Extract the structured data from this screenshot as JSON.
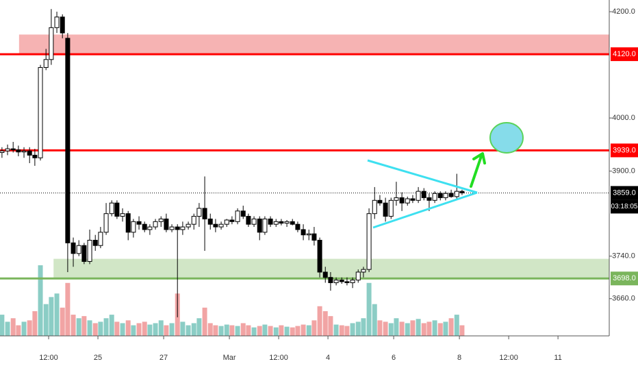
{
  "chart_data": {
    "type": "candlestick",
    "x": [
      22.08,
      22.25,
      22.42,
      22.58,
      22.75,
      22.92,
      23.08,
      23.25,
      23.42,
      23.58,
      23.75,
      23.92,
      24.08,
      24.25,
      24.42,
      24.58,
      24.75,
      24.92,
      25.08,
      25.25,
      25.42,
      25.58,
      25.75,
      25.92,
      26.08,
      26.25,
      26.42,
      26.58,
      26.75,
      26.92,
      27.08,
      27.25,
      27.42,
      27.58,
      27.75,
      27.92,
      28.08,
      28.25,
      28.42,
      28.58,
      28.75,
      28.92,
      29.08,
      29.25,
      29.42,
      29.58,
      29.75,
      29.92,
      30.08,
      30.25,
      30.42,
      30.58,
      30.75,
      30.92,
      31.08,
      31.25,
      31.42,
      31.58,
      31.75,
      31.92,
      32.08,
      32.25,
      32.42,
      32.58,
      32.75,
      32.92,
      33.08,
      33.25,
      33.42,
      33.58,
      33.75,
      33.92,
      34.08,
      34.25,
      34.42,
      34.58,
      34.75,
      34.92,
      35.08,
      35.25,
      35.42,
      35.58,
      35.75,
      35.92,
      36.08
    ],
    "open": [
      3935,
      3938,
      3942,
      3940,
      3936,
      3938,
      3930,
      3925,
      4095,
      4110,
      4170,
      4190,
      4150,
      3765,
      3745,
      3760,
      3730,
      3770,
      3760,
      3785,
      3820,
      3840,
      3815,
      3820,
      3785,
      3805,
      3800,
      3790,
      3795,
      3805,
      3810,
      3790,
      3795,
      3790,
      3795,
      3800,
      3815,
      3830,
      3810,
      3800,
      3795,
      3800,
      3808,
      3805,
      3825,
      3815,
      3800,
      3810,
      3785,
      3810,
      3800,
      3805,
      3802,
      3805,
      3800,
      3790,
      3780,
      3782,
      3770,
      3710,
      3700,
      3690,
      3695,
      3692,
      3690,
      3695,
      3710,
      3715,
      3820,
      3845,
      3840,
      3815,
      3845,
      3850,
      3840,
      3848,
      3845,
      3862,
      3850,
      3845,
      3858,
      3850,
      3858,
      3852,
      3862
    ],
    "high": [
      3945,
      3950,
      3955,
      3948,
      3945,
      3945,
      3942,
      4100,
      4130,
      4205,
      4200,
      4195,
      4160,
      3775,
      3770,
      3765,
      3790,
      3780,
      3795,
      3840,
      3845,
      3845,
      3830,
      3825,
      3810,
      3815,
      3805,
      3800,
      3810,
      3815,
      3820,
      3800,
      3800,
      3805,
      3805,
      3820,
      3840,
      3890,
      3820,
      3810,
      3805,
      3810,
      3815,
      3830,
      3835,
      3820,
      3815,
      3815,
      3815,
      3815,
      3810,
      3810,
      3808,
      3810,
      3805,
      3800,
      3790,
      3795,
      3775,
      3720,
      3710,
      3700,
      3700,
      3700,
      3700,
      3715,
      3720,
      3830,
      3870,
      3855,
      3850,
      3850,
      3880,
      3860,
      3852,
      3855,
      3870,
      3868,
      3858,
      3862,
      3862,
      3862,
      3865,
      3895,
      3865
    ],
    "low": [
      3925,
      3930,
      3935,
      3928,
      3925,
      3915,
      3910,
      3920,
      4090,
      4100,
      4160,
      4150,
      3710,
      3720,
      3740,
      3725,
      3725,
      3750,
      3755,
      3780,
      3815,
      3810,
      3805,
      3770,
      3775,
      3790,
      3785,
      3780,
      3790,
      3795,
      3785,
      3785,
      3625,
      3780,
      3790,
      3790,
      3795,
      3750,
      3790,
      3785,
      3790,
      3795,
      3800,
      3800,
      3810,
      3795,
      3795,
      3770,
      3780,
      3795,
      3795,
      3798,
      3795,
      3798,
      3785,
      3770,
      3770,
      3760,
      3700,
      3690,
      3675,
      3685,
      3688,
      3685,
      3680,
      3690,
      3700,
      3710,
      3810,
      3835,
      3805,
      3810,
      3835,
      3825,
      3835,
      3840,
      3840,
      3845,
      3825,
      3840,
      3845,
      3845,
      3850,
      3848,
      3855
    ],
    "close": [
      3938,
      3942,
      3940,
      3936,
      3938,
      3930,
      3925,
      4095,
      4110,
      4170,
      4190,
      4160,
      3765,
      3745,
      3760,
      3730,
      3770,
      3760,
      3785,
      3820,
      3840,
      3815,
      3820,
      3785,
      3805,
      3800,
      3790,
      3795,
      3805,
      3810,
      3790,
      3795,
      3790,
      3795,
      3800,
      3815,
      3830,
      3810,
      3800,
      3795,
      3800,
      3808,
      3805,
      3825,
      3815,
      3800,
      3810,
      3785,
      3810,
      3800,
      3805,
      3802,
      3805,
      3800,
      3790,
      3780,
      3782,
      3770,
      3710,
      3700,
      3690,
      3695,
      3692,
      3690,
      3695,
      3710,
      3715,
      3820,
      3845,
      3840,
      3815,
      3845,
      3850,
      3840,
      3848,
      3845,
      3862,
      3850,
      3845,
      3858,
      3850,
      3858,
      3852,
      3862,
      3859
    ],
    "volume": [
      30,
      20,
      25,
      15,
      20,
      22,
      35,
      100,
      45,
      55,
      60,
      40,
      75,
      30,
      25,
      28,
      22,
      18,
      20,
      25,
      30,
      20,
      18,
      22,
      15,
      18,
      20,
      16,
      18,
      22,
      15,
      18,
      60,
      20,
      15,
      18,
      25,
      40,
      18,
      15,
      14,
      16,
      15,
      14,
      18,
      15,
      12,
      14,
      16,
      14,
      12,
      15,
      13,
      12,
      14,
      16,
      15,
      22,
      42,
      35,
      28,
      16,
      15,
      14,
      18,
      20,
      25,
      75,
      45,
      22,
      20,
      18,
      25,
      20,
      18,
      22,
      24,
      18,
      20,
      22,
      18,
      20,
      25,
      30,
      15
    ],
    "up_color": "#ffffff",
    "down_color": "#000000",
    "outline_color": "#000000",
    "volume_up_color": "#7ec8bf",
    "volume_down_color": "#ef9a9a",
    "xlim": [
      22.02,
      40.56
    ],
    "ylim": [
      3590,
      4222
    ],
    "xticks": [
      {
        "value": 23.5,
        "label": "12:00"
      },
      25,
      27,
      {
        "value": 29,
        "label": "Mar"
      },
      {
        "value": 30.5,
        "label": "12:00"
      },
      {
        "value": 32,
        "label": "4"
      },
      {
        "value": 34,
        "label": "6"
      },
      {
        "value": 36,
        "label": "8"
      },
      {
        "value": 37.5,
        "label": "12:00"
      },
      {
        "value": 39,
        "label": "11"
      }
    ],
    "yticks": [
      {
        "value": 4200,
        "label": "4200.0"
      },
      {
        "value": 4000,
        "label": "4000.0"
      },
      {
        "value": 3900,
        "label": "3900.0"
      },
      {
        "value": 3740,
        "label": "3740.0"
      },
      {
        "value": 3660,
        "label": "3660.0"
      }
    ],
    "zones": [
      {
        "from": 4120,
        "to": 4157,
        "start": 22.6,
        "color": "#f4a6a6"
      },
      {
        "from": 3698,
        "to": 3735,
        "start": 23.65,
        "color": "#c9e2bc"
      }
    ],
    "levels": [
      {
        "value": 4120,
        "label": "4120.0",
        "color": "#ff0000"
      },
      {
        "value": 3939,
        "label": "3939.0",
        "color": "#ff0000"
      },
      {
        "value": 3698,
        "label": "3698.0",
        "color": "#7ab55c"
      },
      {
        "value": 3859,
        "label": "3859.0",
        "color": "#000000",
        "dotted": true
      }
    ],
    "countdown": "03:18:05"
  }
}
